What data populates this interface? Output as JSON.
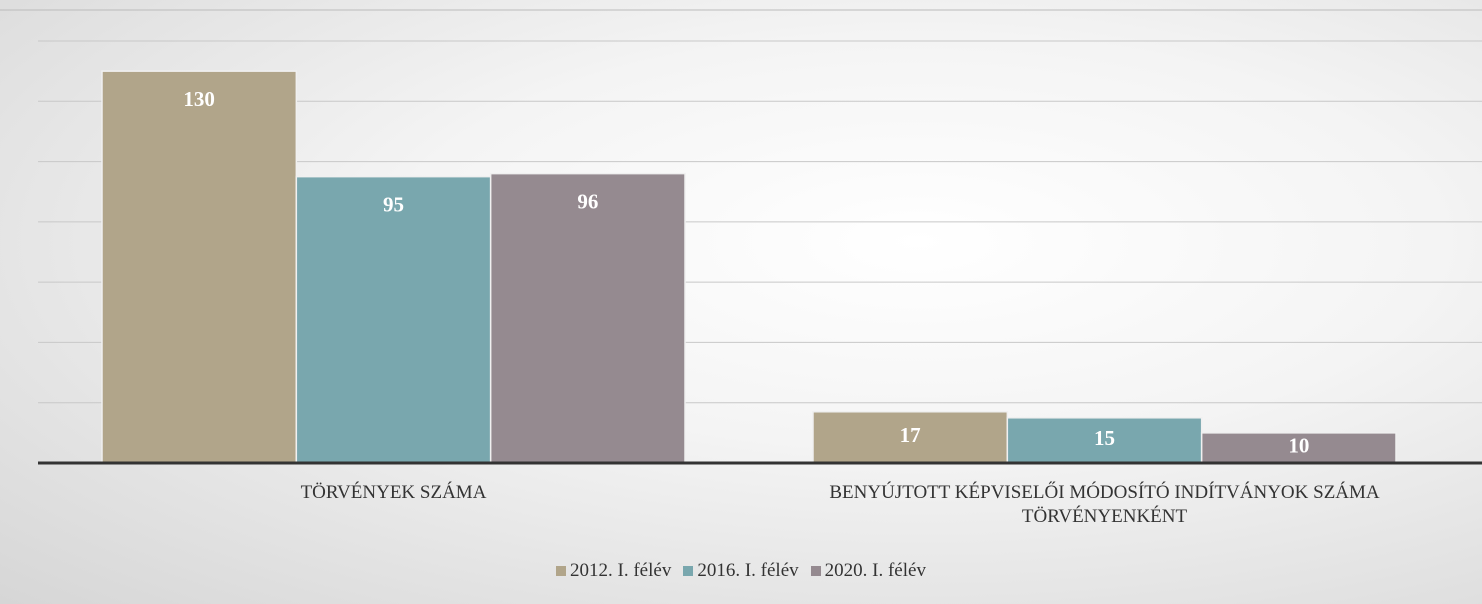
{
  "chart_data": {
    "type": "bar",
    "categories": [
      "TÖRVÉNYEK SZÁMA",
      "BENYÚJTOTT KÉPVISELŐI MÓDOSÍTÓ INDÍTVÁNYOK SZÁMA TÖRVÉNYENKÉNT"
    ],
    "series": [
      {
        "name": "2012. I. félév",
        "color": "#b1a58a",
        "values": [
          130,
          17
        ]
      },
      {
        "name": "2016. I. félév",
        "color": "#79a7ae",
        "values": [
          95,
          15
        ]
      },
      {
        "name": "2020. I. félév",
        "color": "#958a90",
        "values": [
          96,
          10
        ]
      }
    ],
    "ylim": [
      0,
      140
    ],
    "yticks": [
      0,
      20,
      40,
      60,
      80,
      100,
      120,
      140
    ],
    "grid": true,
    "legend": "bottom"
  }
}
